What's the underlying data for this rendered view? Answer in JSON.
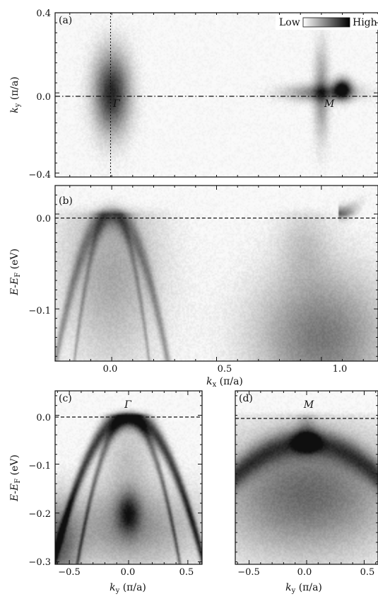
{
  "chart_data": [
    {
      "id": "a",
      "type": "heatmap",
      "panel_label": "(a)",
      "xlim": [
        -0.27,
        1.27
      ],
      "ylim": [
        -0.42,
        0.4
      ],
      "yticks": [
        -0.4,
        0.0,
        0.4
      ],
      "ytick_labels": [
        "−0.4",
        "0.0",
        "0.4"
      ],
      "ylabel": {
        "main": "k",
        "sub": "y",
        "unit": " (π/a)"
      },
      "colorbar": {
        "low": "Low",
        "high": "High"
      },
      "point_labels": [
        {
          "text": "Γ",
          "x": 0.04,
          "y": -0.05
        },
        {
          "text": "M",
          "x": 0.97,
          "y": -0.05
        }
      ],
      "ref_lines": {
        "vertical_x": 0.0,
        "horizontal_y": 0.0
      },
      "features": [
        {
          "x": 0.0,
          "y": 0.0,
          "sx": 0.06,
          "sy": 0.14,
          "intensity": 0.9
        },
        {
          "x": 1.0,
          "y": 0.0,
          "sx": 0.12,
          "sy": 0.03,
          "intensity": 0.55
        },
        {
          "x": 1.0,
          "y": 0.0,
          "sx": 0.025,
          "sy": 0.16,
          "intensity": 0.45
        },
        {
          "x": 1.1,
          "y": 0.02,
          "sx": 0.03,
          "sy": 0.035,
          "intensity": 1.0
        }
      ]
    },
    {
      "id": "b",
      "type": "heatmap",
      "panel_label": "(b)",
      "xlim": [
        -0.27,
        1.27
      ],
      "ylim": [
        -0.155,
        0.03
      ],
      "xticks": [
        0.0,
        0.5,
        1.0
      ],
      "xtick_labels": [
        "0.0",
        "0.5",
        "1.0"
      ],
      "yticks": [
        -0.1,
        0.0
      ],
      "ytick_labels": [
        "−0.1",
        "0.0"
      ],
      "xlabel": {
        "main": "k",
        "sub": "x",
        "unit": " (π/a)"
      },
      "ylabel": {
        "main": "E",
        "mid": "-",
        "main2": "E",
        "sub": "F",
        "unit": " (eV)"
      },
      "fermi_level": 0.0,
      "features": [
        {
          "kind": "gauss",
          "x": 0.0,
          "y": -0.06,
          "sx": 0.17,
          "sy": 0.07,
          "intensity": 0.35
        },
        {
          "kind": "gauss",
          "x": 1.0,
          "y": -0.13,
          "sx": 0.22,
          "sy": 0.05,
          "intensity": 0.55
        },
        {
          "kind": "gauss",
          "x": 0.92,
          "y": -0.03,
          "sx": 0.09,
          "sy": 0.03,
          "intensity": 0.18
        },
        {
          "kind": "band",
          "x0": 0.0,
          "y0": 0.002,
          "curv": 2.2,
          "width": 0.012,
          "intensity": 0.35
        },
        {
          "kind": "band",
          "x0": 0.0,
          "y0": 0.004,
          "curv": 5.0,
          "width": 0.01,
          "intensity": 0.25
        },
        {
          "kind": "band",
          "x0": 1.08,
          "y0": 0.005,
          "curv": -1.0,
          "width": 0.006,
          "intensity": 0.9,
          "side": "right"
        }
      ]
    },
    {
      "id": "c",
      "type": "heatmap",
      "panel_label": "(c)",
      "title": "Γ",
      "xlim": [
        -0.62,
        0.62
      ],
      "ylim": [
        -0.305,
        0.05
      ],
      "xticks": [
        -0.5,
        0.0,
        0.5
      ],
      "xtick_labels": [
        "−0.5",
        "0.0",
        "0.5"
      ],
      "yticks": [
        -0.3,
        -0.2,
        -0.1,
        0.0
      ],
      "ytick_labels": [
        "−0.3",
        "−0.2",
        "−0.1",
        "0.0"
      ],
      "xlabel": {
        "main": "k",
        "sub": "y",
        "unit": " (π/a)"
      },
      "ylabel": {
        "main": "E",
        "mid": "-",
        "main2": "E",
        "sub": "F",
        "unit": " (eV)"
      },
      "fermi_level": 0.0,
      "features": [
        {
          "kind": "band",
          "x0": 0.0,
          "y0": 0.0,
          "curv": 0.75,
          "width": 0.016,
          "intensity": 0.75
        },
        {
          "kind": "band",
          "x0": 0.0,
          "y0": -0.005,
          "curv": 1.6,
          "width": 0.014,
          "intensity": 0.45
        },
        {
          "kind": "gauss",
          "x": 0.0,
          "y": -0.2,
          "sx": 0.07,
          "sy": 0.03,
          "intensity": 0.6
        },
        {
          "kind": "gauss",
          "x": 0.0,
          "y": -0.23,
          "sx": 0.45,
          "sy": 0.06,
          "intensity": 0.45
        },
        {
          "kind": "gauss",
          "x": -0.6,
          "y": -0.27,
          "sx": 0.12,
          "sy": 0.06,
          "intensity": 0.55
        },
        {
          "kind": "gauss",
          "x": 0.0,
          "y": -0.08,
          "sx": 0.16,
          "sy": 0.06,
          "intensity": 0.22
        }
      ]
    },
    {
      "id": "d",
      "type": "heatmap",
      "panel_label": "(d)",
      "title": "M",
      "xlim": [
        -0.62,
        0.62
      ],
      "ylim": [
        -0.305,
        0.05
      ],
      "xticks": [
        -0.5,
        0.0,
        0.5
      ],
      "xtick_labels": [
        "−0.5",
        "0.0",
        "0.5"
      ],
      "xlabel": {
        "main": "k",
        "sub": "y",
        "unit": " (π/a)"
      },
      "fermi_level": 0.0,
      "features": [
        {
          "kind": "gauss",
          "x": 0.0,
          "y": -0.055,
          "sx": 0.07,
          "sy": 0.013,
          "intensity": 0.95
        },
        {
          "kind": "band",
          "x0": 0.0,
          "y0": -0.055,
          "curv": 0.18,
          "width": 0.02,
          "intensity": 0.55
        },
        {
          "kind": "gauss",
          "x": 0.0,
          "y": -0.16,
          "sx": 0.55,
          "sy": 0.09,
          "intensity": 0.62
        },
        {
          "kind": "gauss",
          "x": 0.0,
          "y": -0.02,
          "sx": 0.06,
          "sy": 0.02,
          "intensity": 0.2
        }
      ]
    }
  ]
}
